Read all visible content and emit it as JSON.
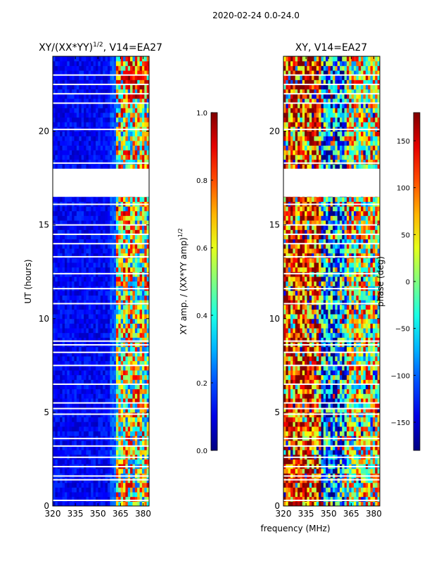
{
  "suptitle": "2020-02-24 0.0-24.0",
  "shared_xlabel": "frequency (MHz)",
  "chart_data": [
    {
      "type": "heatmap",
      "title_main": "XY/(XX*YY)",
      "title_sup": "1/2",
      "title_rest": ", V14=EA27",
      "xlabel": "",
      "ylabel": "UT (hours)",
      "xlim": [
        320,
        384
      ],
      "ylim": [
        0,
        24
      ],
      "xticks": [
        320,
        335,
        350,
        365,
        380
      ],
      "yticks": [
        0,
        5,
        10,
        15,
        20
      ],
      "colorbar": {
        "label_main": "XY amp. / (XX*YY amp)",
        "label_sup": "1/2",
        "range": [
          0.0,
          1.0
        ],
        "ticks": [
          "0.0",
          "0.2",
          "0.4",
          "0.6",
          "0.8",
          "1.0"
        ],
        "tick_values": [
          0.0,
          0.2,
          0.4,
          0.6,
          0.8,
          1.0
        ]
      },
      "gap_ut": [
        [
          16.5,
          18.0
        ]
      ],
      "flagged_ut": [
        0.3,
        1.4,
        1.6,
        2.1,
        2.6,
        3.2,
        3.6,
        4.9,
        5.2,
        5.5,
        6.5,
        7.5,
        8.2,
        8.6,
        8.8,
        10.8,
        11.6,
        12.4,
        13.3,
        14.0,
        14.5,
        15.0,
        16.1,
        18.3,
        20.1,
        21.5,
        22.0,
        22.5,
        23.0
      ],
      "zones": [
        {
          "from": 320,
          "to": 358,
          "level": 0.12,
          "scheme": "ratio-low"
        },
        {
          "from": 358,
          "to": 362,
          "level": 0.2,
          "scheme": "ratio-low"
        },
        {
          "from": 362,
          "to": 384,
          "level": 0.55,
          "scheme": "ratio-high"
        }
      ]
    },
    {
      "type": "heatmap",
      "title_main": "XY, V14=EA27",
      "title_sup": "",
      "title_rest": "",
      "xlabel": "",
      "ylabel": "",
      "xlim": [
        320,
        384
      ],
      "ylim": [
        0,
        24
      ],
      "xticks": [
        320,
        335,
        350,
        365,
        380
      ],
      "yticks": [
        0,
        5,
        10,
        15,
        20
      ],
      "colorbar": {
        "label_main": "phase (deg)",
        "label_sup": "",
        "range": [
          -180,
          180
        ],
        "ticks": [
          "−150",
          "−100",
          "−50",
          "0",
          "50",
          "100",
          "150"
        ],
        "tick_values": [
          -150,
          -100,
          -50,
          0,
          50,
          100,
          150
        ]
      },
      "gap_ut": [
        [
          16.5,
          18.0
        ]
      ],
      "flagged_ut": [
        0.3,
        1.4,
        1.6,
        2.1,
        2.6,
        3.2,
        3.6,
        4.9,
        5.2,
        5.5,
        6.5,
        7.5,
        8.2,
        8.6,
        8.8,
        10.8,
        11.6,
        12.4,
        13.3,
        14.0,
        14.5,
        15.0,
        16.1,
        18.3,
        20.1,
        21.5,
        22.0,
        22.5,
        23.0
      ],
      "zones": [
        {
          "from": 320,
          "to": 345,
          "level": 0.85,
          "scheme": "phase"
        },
        {
          "from": 345,
          "to": 362,
          "level": 0.25,
          "scheme": "phase"
        },
        {
          "from": 362,
          "to": 384,
          "level": 0.6,
          "scheme": "phase"
        }
      ]
    }
  ]
}
